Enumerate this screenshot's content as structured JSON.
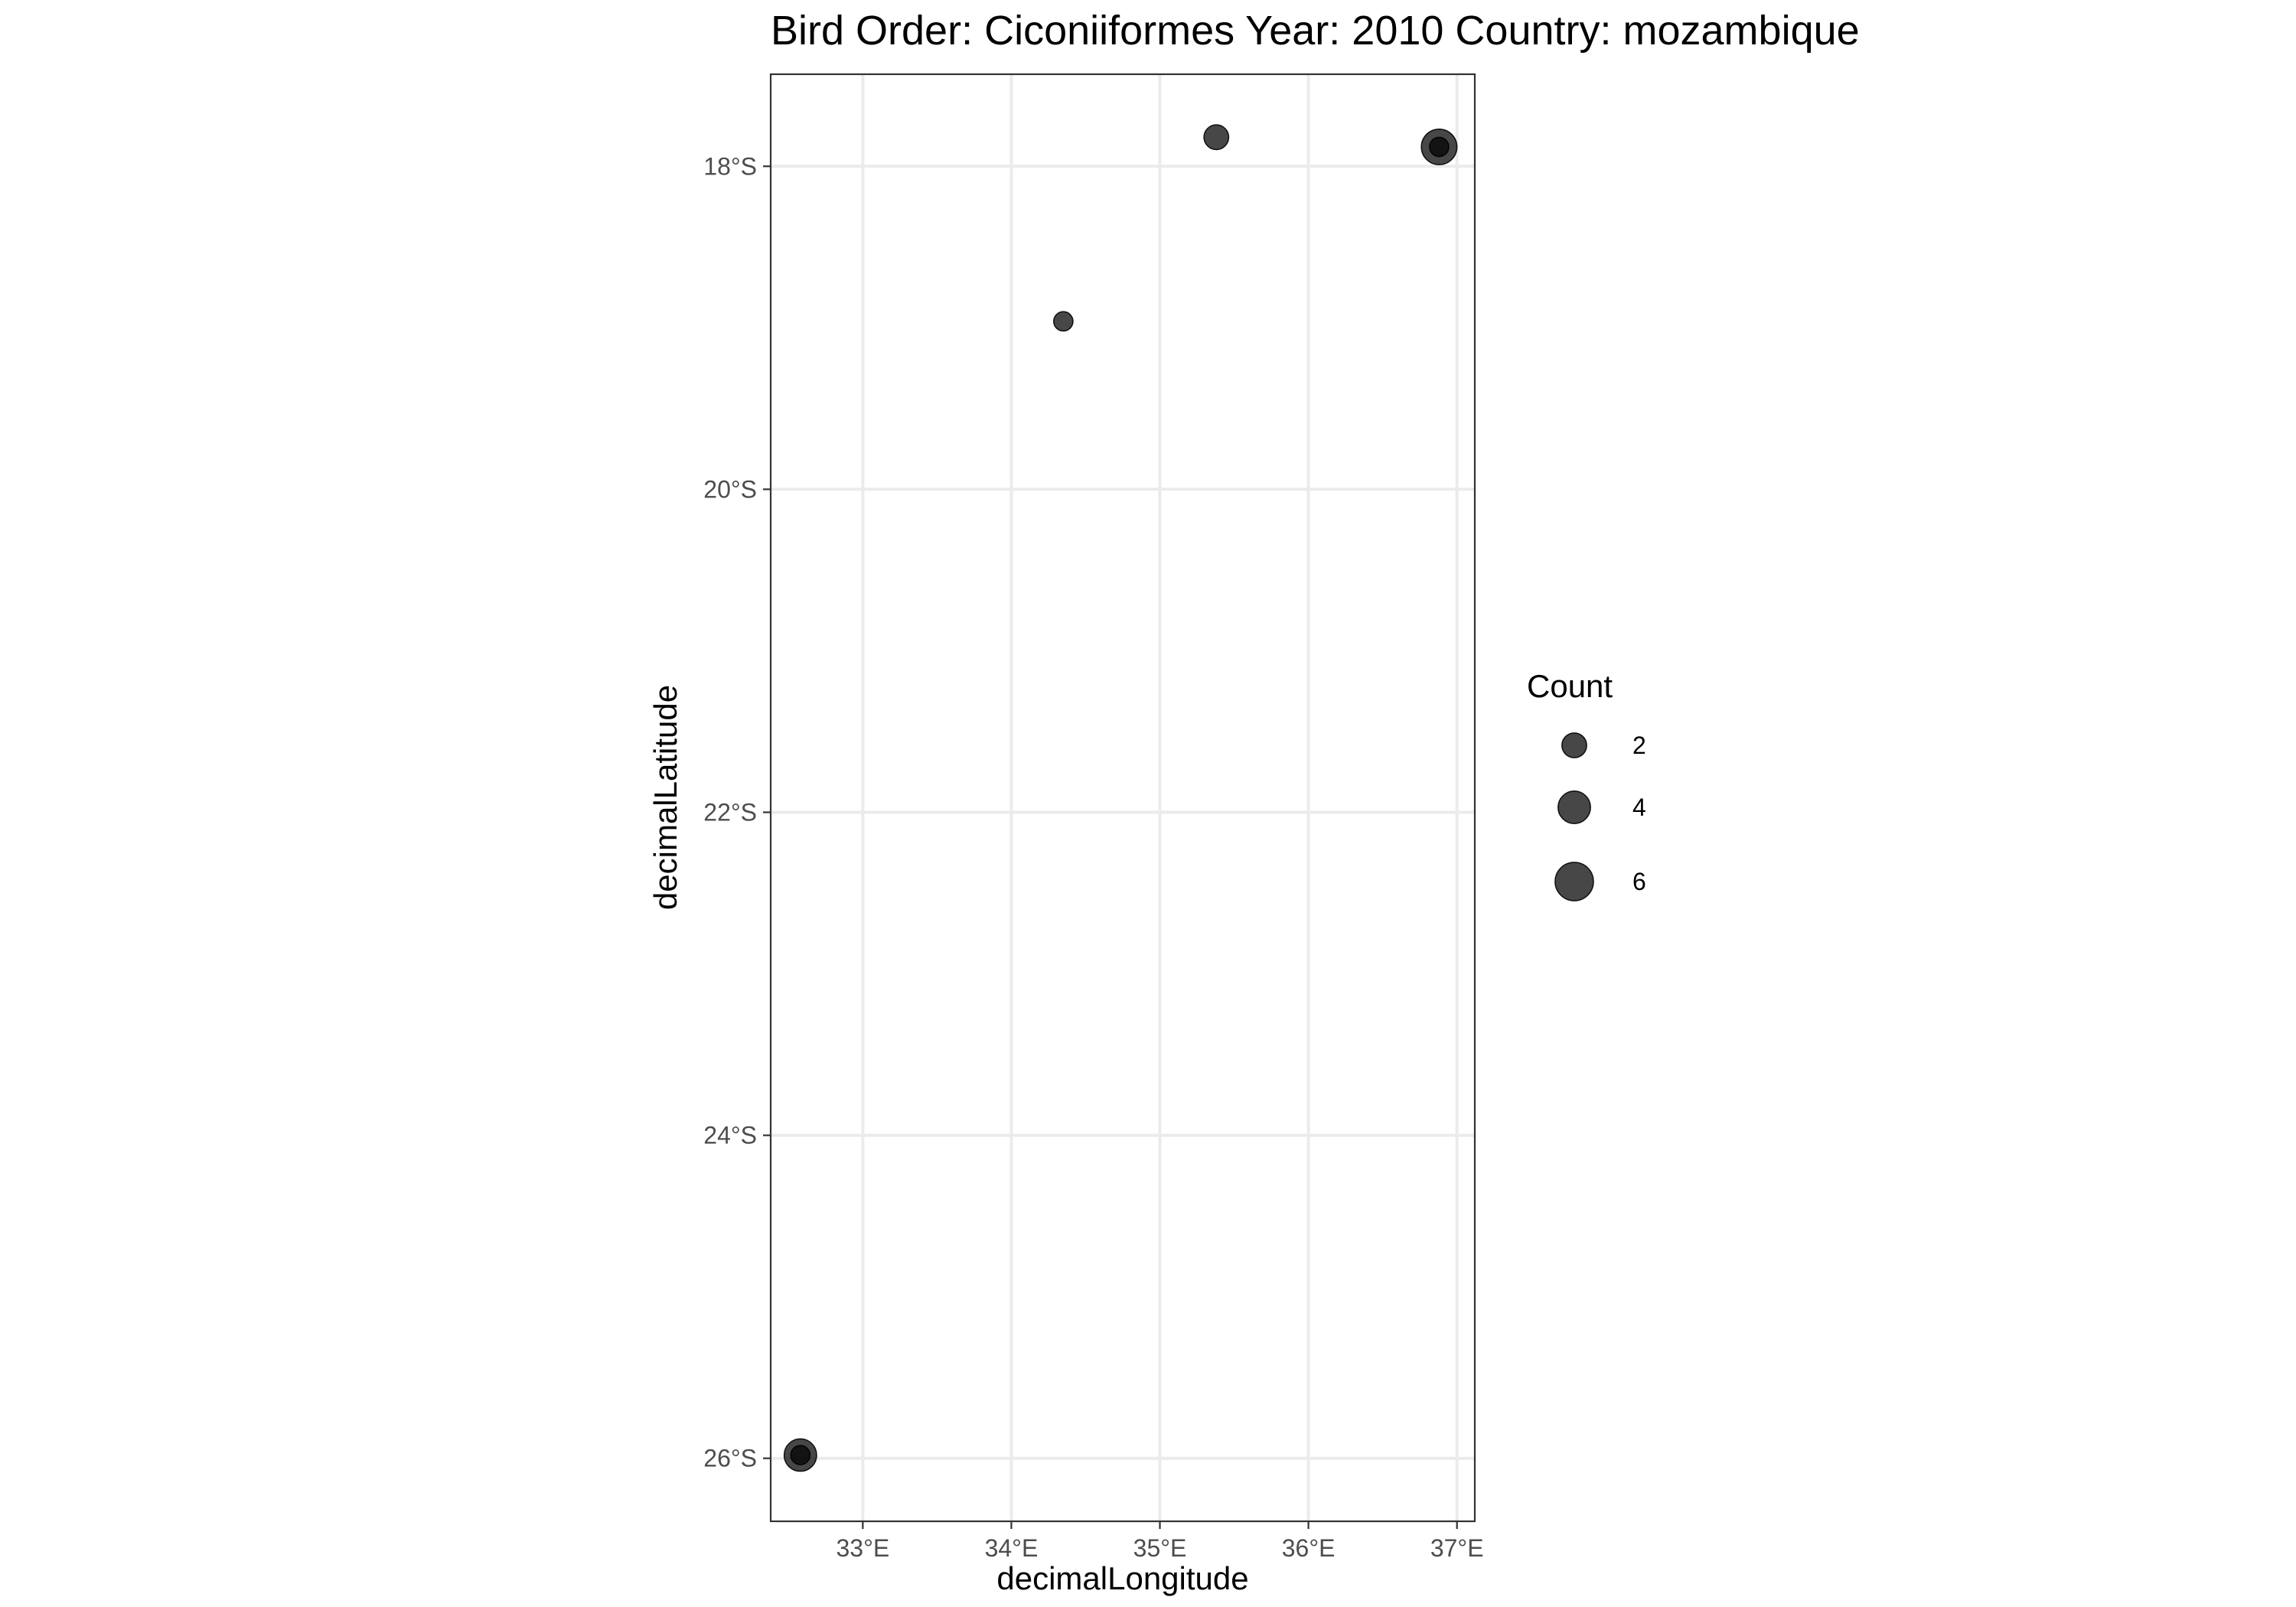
{
  "chart_data": {
    "type": "scatter",
    "title": "Bird Order: Ciconiiformes Year: 2010 Country: mozambique",
    "xlabel": "decimalLongitude",
    "ylabel": "decimalLatitude",
    "xlim": [
      32.38,
      37.12
    ],
    "ylim": [
      -26.39,
      -17.43
    ],
    "x_ticks": [
      {
        "value": 33,
        "label": "33°E"
      },
      {
        "value": 34,
        "label": "34°E"
      },
      {
        "value": 35,
        "label": "35°E"
      },
      {
        "value": 36,
        "label": "36°E"
      },
      {
        "value": 37,
        "label": "37°E"
      }
    ],
    "y_ticks": [
      {
        "value": -18,
        "label": "18°S"
      },
      {
        "value": -20,
        "label": "20°S"
      },
      {
        "value": -22,
        "label": "22°S"
      },
      {
        "value": -24,
        "label": "24°S"
      },
      {
        "value": -26,
        "label": "26°S"
      }
    ],
    "grid": true,
    "size_legend": {
      "title": "Count",
      "entries": [
        {
          "value": 2,
          "label": "2"
        },
        {
          "value": 4,
          "label": "4"
        },
        {
          "value": 6,
          "label": "6"
        }
      ],
      "placement": "right"
    },
    "points": [
      {
        "x": 34.35,
        "y": -18.96,
        "count": 1
      },
      {
        "x": 35.38,
        "y": -17.82,
        "count": 2
      },
      {
        "x": 36.88,
        "y": -17.88,
        "count": 1
      },
      {
        "x": 36.88,
        "y": -17.88,
        "count": 5
      },
      {
        "x": 32.58,
        "y": -25.98,
        "count": 1
      },
      {
        "x": 32.58,
        "y": -25.98,
        "count": 4
      }
    ],
    "colors": {
      "point_fill": "#000000",
      "point_alpha": 0.72,
      "grid": "#ebebeb"
    }
  }
}
